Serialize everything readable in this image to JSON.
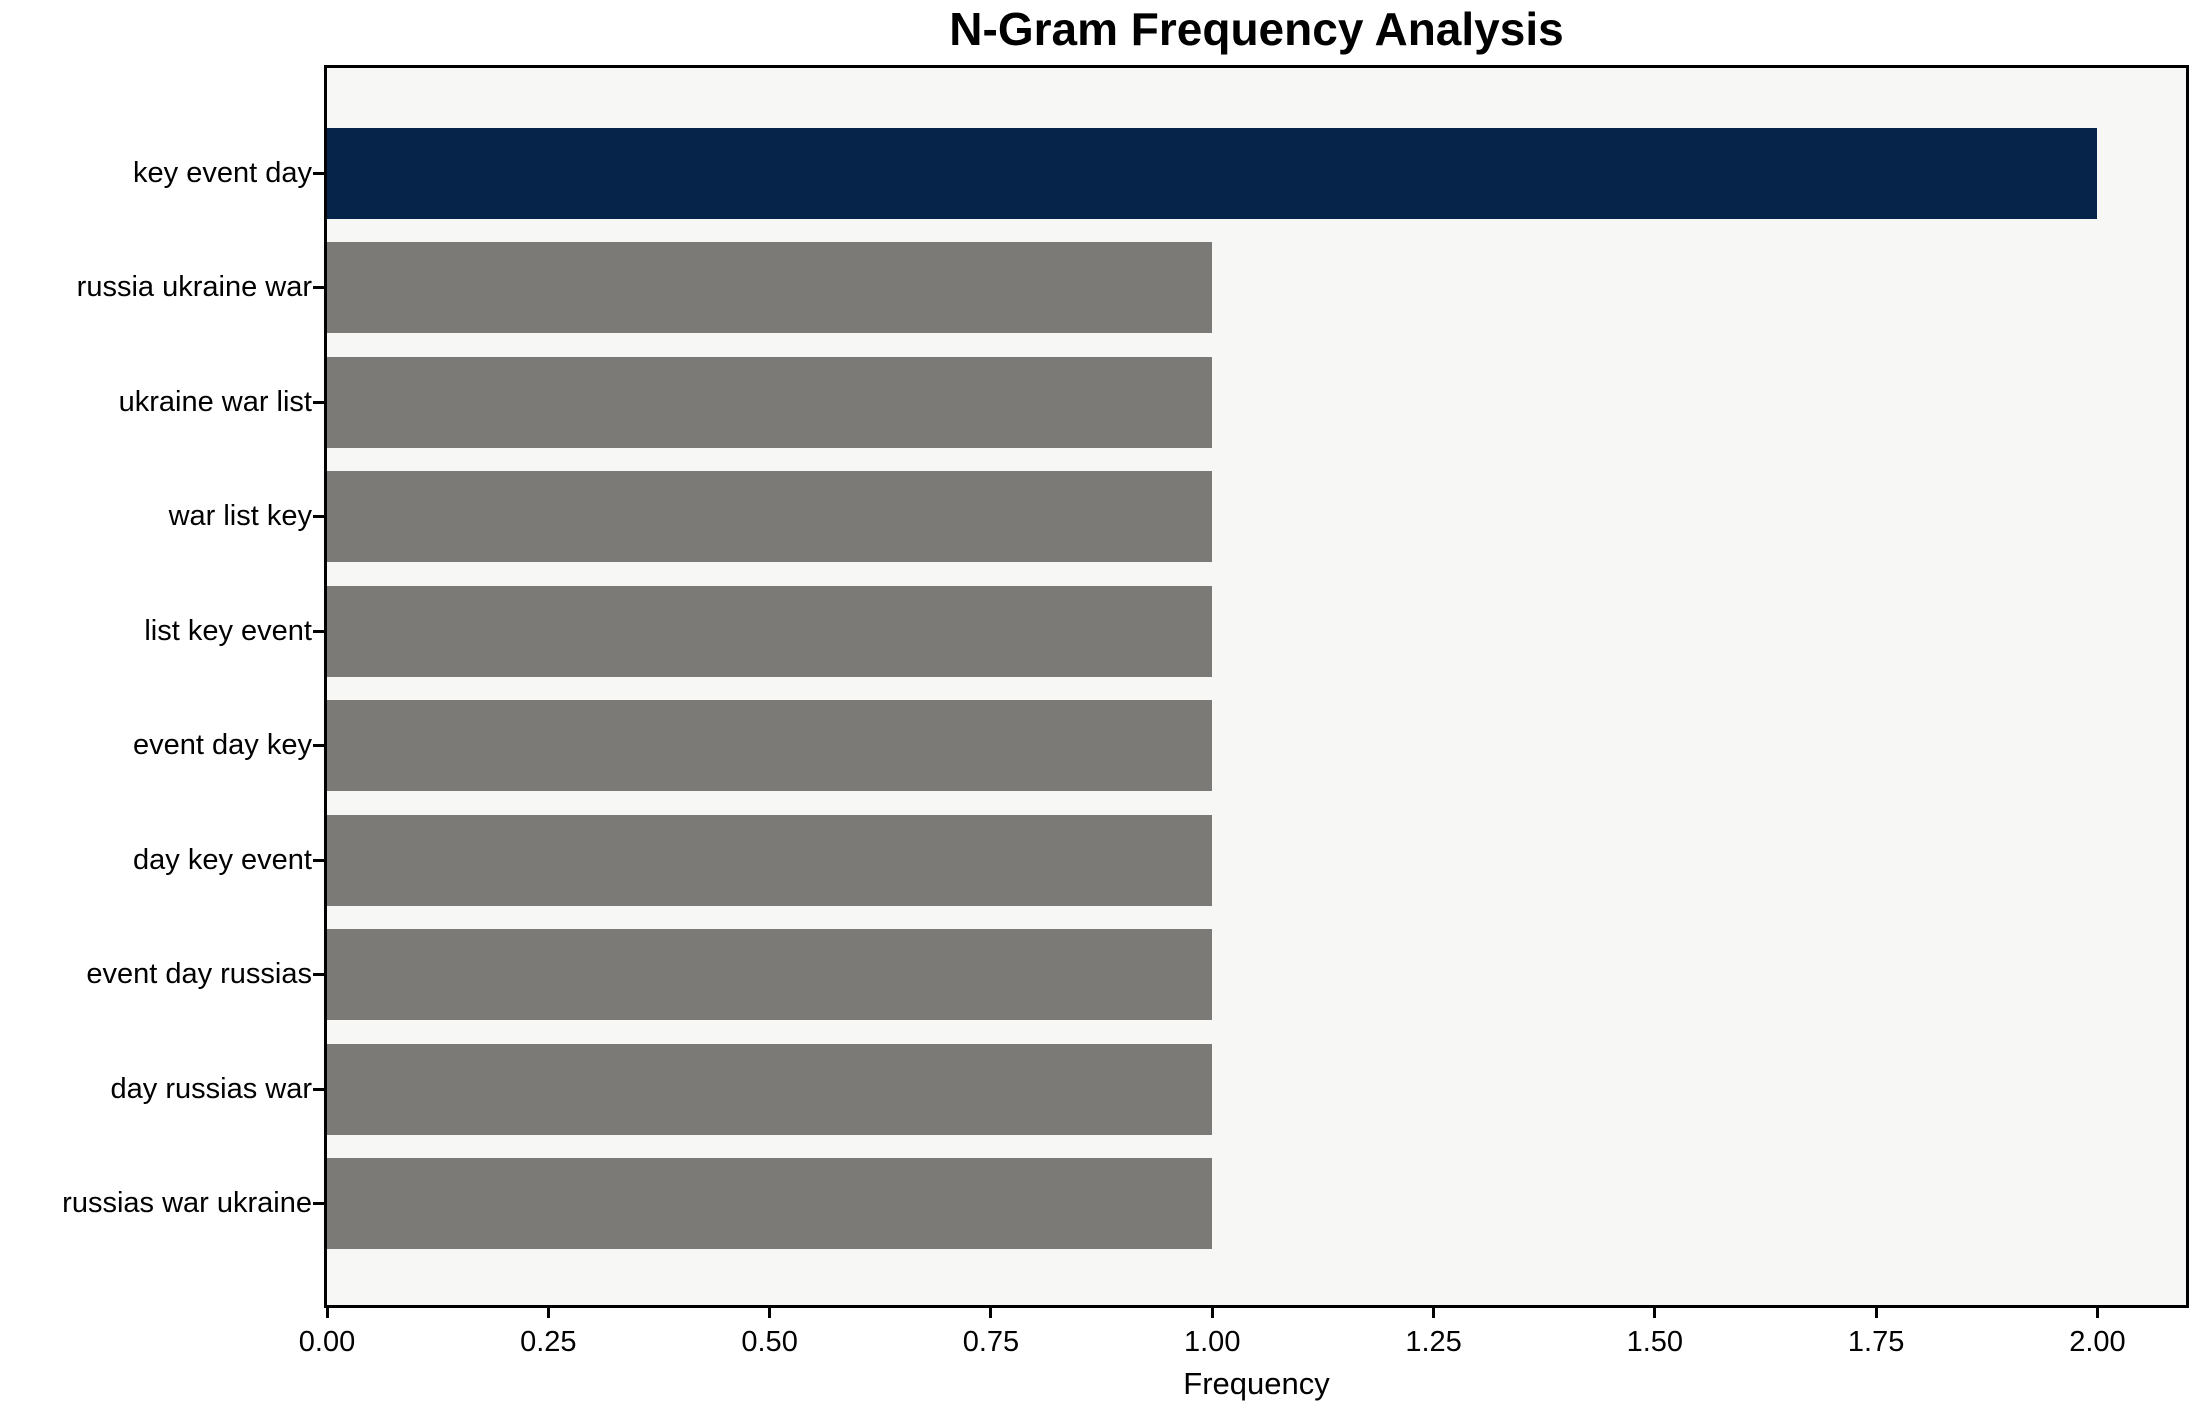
{
  "chart_data": {
    "type": "bar",
    "orientation": "horizontal",
    "title": "N-Gram Frequency Analysis",
    "xlabel": "Frequency",
    "ylabel": "",
    "categories": [
      "key event day",
      "russia ukraine war",
      "ukraine war list",
      "war list key",
      "list key event",
      "event day key",
      "day key event",
      "event day russias",
      "day russias war",
      "russias war ukraine"
    ],
    "values": [
      2,
      1,
      1,
      1,
      1,
      1,
      1,
      1,
      1,
      1
    ],
    "highlight_index": 0,
    "xlim": [
      0,
      2.1
    ],
    "xticks": [
      0.0,
      0.25,
      0.5,
      0.75,
      1.0,
      1.25,
      1.5,
      1.75,
      2.0
    ],
    "xtick_labels": [
      "0.00",
      "0.25",
      "0.50",
      "0.75",
      "1.00",
      "1.25",
      "1.50",
      "1.75",
      "2.00"
    ],
    "grid": false,
    "legend": null,
    "colors": {
      "highlight_bar": "#06234a",
      "default_bar": "#7c7a77",
      "plot_background": "#f7f7f6",
      "figure_background": "#ffffff",
      "frame": "#000000",
      "text": "#000000"
    }
  }
}
